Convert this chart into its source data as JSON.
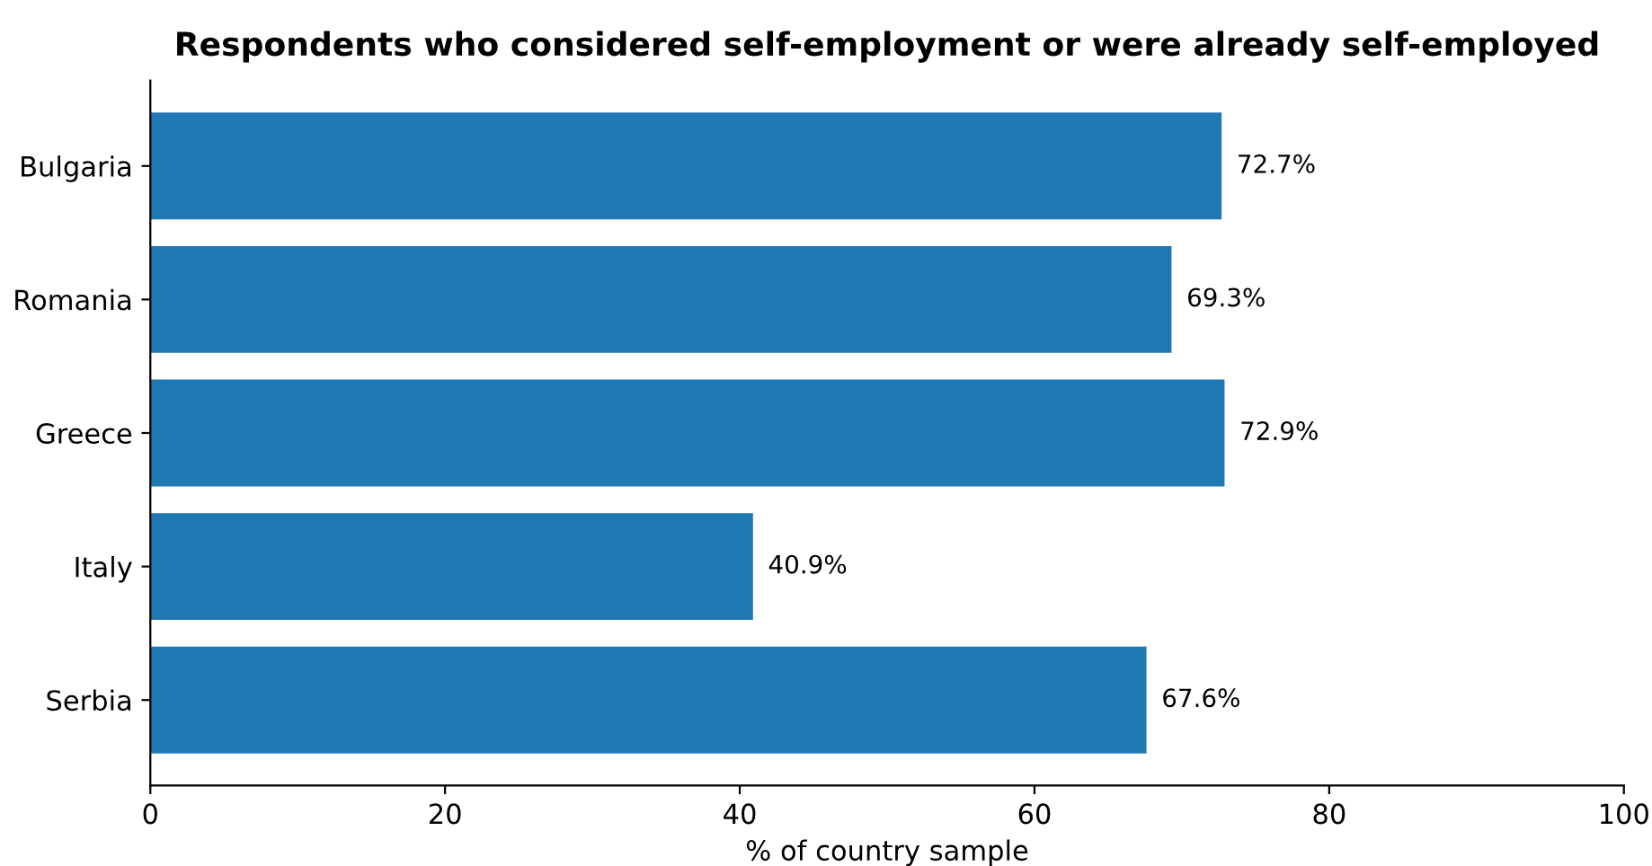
{
  "chart_data": {
    "type": "bar",
    "orientation": "horizontal",
    "title": "Respondents who considered self-employment or were already self-employed",
    "xlabel": "% of country sample",
    "categories": [
      "Bulgaria",
      "Romania",
      "Greece",
      "Italy",
      "Serbia"
    ],
    "values": [
      72.7,
      69.3,
      72.9,
      40.9,
      67.6
    ],
    "value_labels": [
      "72.7%",
      "69.3%",
      "72.9%",
      "40.9%",
      "67.6%"
    ],
    "color": "#1f77b4",
    "xlim": [
      0,
      100
    ],
    "xticks": [
      0,
      20,
      40,
      60,
      80,
      100
    ],
    "grid": false
  }
}
